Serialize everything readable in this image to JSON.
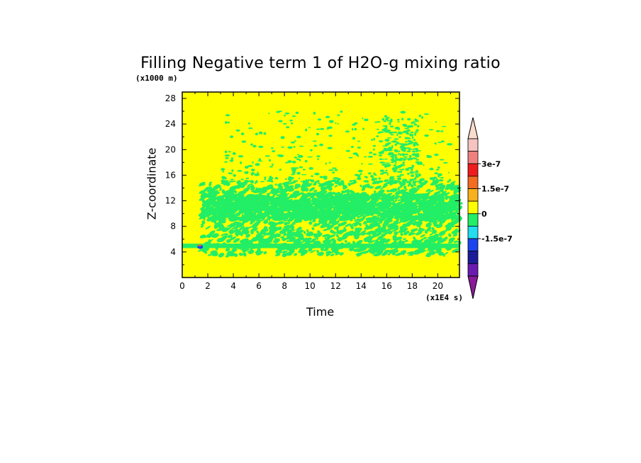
{
  "chart_data": {
    "type": "heatmap",
    "title": "Filling Negative term 1 of H2O-g mixing ratio",
    "xlabel": "Time",
    "ylabel": "Z-coordinate",
    "x_unit_label": "(x1E4 s)",
    "y_unit_label": "(x1000 m)",
    "xlim": [
      0,
      21.7
    ],
    "ylim": [
      0,
      29
    ],
    "x_ticks": [
      0,
      2,
      4,
      6,
      8,
      10,
      12,
      14,
      16,
      18,
      20
    ],
    "y_ticks": [
      4,
      8,
      12,
      16,
      20,
      24,
      28
    ],
    "background_value": 0,
    "colorbar": {
      "tick_labels": [
        "3e-7",
        "1.5e-7",
        "0",
        "-1.5e-7"
      ],
      "tick_values": [
        3e-07,
        1.5e-07,
        0,
        -1.5e-07
      ],
      "levels_top_to_bottom": [
        {
          "color": "#f5c4c0"
        },
        {
          "color": "#ef8080"
        },
        {
          "color": "#ee1c1c"
        },
        {
          "color": "#f26c22"
        },
        {
          "color": "#f7b11c"
        },
        {
          "color": "#ffff00"
        },
        {
          "color": "#22ee66"
        },
        {
          "color": "#22ddee"
        },
        {
          "color": "#1c44ee"
        },
        {
          "color": "#1c1c99"
        },
        {
          "color": "#6a1ab0"
        }
      ],
      "triangle_top_color": "#fbdccc",
      "triangle_bottom_color": "#8b1a9a"
    },
    "regions": [
      {
        "label": "thin band near surface",
        "x_range": [
          0,
          21.7
        ],
        "z_range": [
          4.6,
          5.3
        ],
        "value": "slightly negative"
      },
      {
        "label": "broken field",
        "x_range": [
          1.5,
          21.7
        ],
        "z_range": [
          3.5,
          15
        ],
        "value": "slightly negative"
      },
      {
        "label": "sparse patches",
        "x_range": [
          3,
          21
        ],
        "z_range": [
          15,
          26
        ],
        "value": "slightly negative"
      },
      {
        "label": "small negative spot",
        "x": 1.4,
        "z": 4.8,
        "value": -1.5e-07
      }
    ]
  }
}
